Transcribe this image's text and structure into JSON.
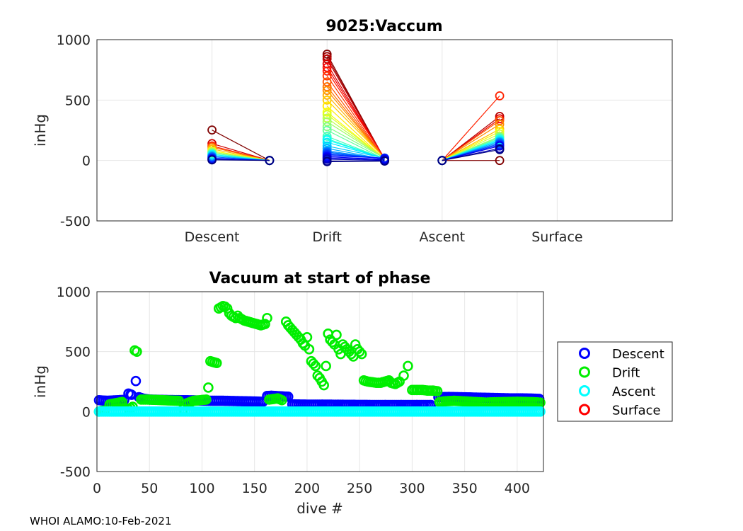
{
  "footer": "WHOI ALAMO:10-Feb-2021",
  "chart_data": [
    {
      "type": "line",
      "title": "9025:Vaccum",
      "ylabel": "inHg",
      "xlabel": "",
      "categories": [
        "Descent",
        "Drift",
        "Ascent",
        "Surface"
      ],
      "ylim": [
        -500,
        1000
      ],
      "yticks": [
        -500,
        0,
        500,
        1000
      ],
      "grid": true,
      "note_segments": "Each line joins the vacuum at the start of a phase to the vacuum at the end of that phase for one dive; line colour runs from dark red (earliest dives) to dark blue (latest dives).",
      "phases": [
        {
          "phase": "Descent",
          "start_values": [
            252,
            140,
            120,
            110,
            95,
            80,
            70,
            60,
            50,
            40,
            30,
            20,
            10,
            5
          ],
          "end_values": [
            0,
            0,
            0,
            0,
            0,
            0,
            0,
            0,
            0,
            0,
            0,
            0,
            0,
            0
          ]
        },
        {
          "phase": "Drift",
          "start_values": [
            880,
            860,
            840,
            800,
            770,
            740,
            700,
            650,
            610,
            580,
            540,
            500,
            450,
            400,
            380,
            350,
            320,
            280,
            250,
            200,
            180,
            170,
            150,
            120,
            100,
            80,
            70,
            60,
            50,
            40,
            30,
            20,
            10,
            -5,
            -10
          ],
          "end_values": [
            10,
            12,
            14,
            16,
            18,
            20,
            10,
            12,
            14,
            16,
            18,
            20,
            10,
            12,
            14,
            16,
            18,
            20,
            10,
            12,
            14,
            16,
            18,
            20,
            10,
            12,
            14,
            16,
            18,
            20,
            10,
            5,
            0,
            -5,
            -5
          ]
        },
        {
          "phase": "Ascent",
          "start_values": [
            0,
            0,
            0,
            0,
            0,
            0,
            0,
            0,
            0,
            0,
            0,
            0,
            0,
            0,
            0,
            0,
            0,
            0,
            0,
            0
          ],
          "end_values": [
            0,
            365,
            345,
            535,
            330,
            300,
            260,
            240,
            220,
            200,
            190,
            180,
            170,
            160,
            150,
            140,
            130,
            120,
            100,
            90
          ]
        }
      ]
    },
    {
      "type": "scatter",
      "title": "Vacuum at start of phase",
      "xlabel": "dive #",
      "ylabel": "inHg",
      "xlim": [
        0,
        425
      ],
      "xticks": [
        0,
        50,
        100,
        150,
        200,
        250,
        300,
        350,
        400
      ],
      "ylim": [
        -500,
        1000
      ],
      "yticks": [
        -500,
        0,
        500,
        1000
      ],
      "grid": true,
      "legend_position": "outside-right",
      "series": [
        {
          "name": "Descent",
          "color": "#0000ff",
          "points": [
            [
              2,
              95
            ],
            [
              6,
              92
            ],
            [
              10,
              90
            ],
            [
              14,
              92
            ],
            [
              18,
              94
            ],
            [
              22,
              96
            ],
            [
              26,
              98
            ],
            [
              30,
              150
            ],
            [
              33,
              140
            ],
            [
              37,
              255
            ],
            [
              40,
              120
            ],
            [
              44,
              108
            ],
            [
              50,
              100
            ],
            [
              60,
              98
            ],
            [
              70,
              96
            ],
            [
              80,
              95
            ],
            [
              90,
              94
            ],
            [
              100,
              92
            ],
            [
              110,
              90
            ],
            [
              120,
              90
            ],
            [
              130,
              88
            ],
            [
              140,
              86
            ],
            [
              150,
              84
            ],
            [
              158,
              82
            ],
            [
              162,
              130
            ],
            [
              166,
              132
            ],
            [
              170,
              130
            ],
            [
              174,
              128
            ],
            [
              178,
              126
            ],
            [
              182,
              124
            ],
            [
              186,
              60
            ],
            [
              200,
              58
            ],
            [
              215,
              58
            ],
            [
              230,
              57
            ],
            [
              245,
              56
            ],
            [
              260,
              55
            ],
            [
              275,
              55
            ],
            [
              290,
              55
            ],
            [
              305,
              55
            ],
            [
              318,
              55
            ],
            [
              325,
              120
            ],
            [
              335,
              122
            ],
            [
              345,
              120
            ],
            [
              355,
              118
            ],
            [
              365,
              116
            ],
            [
              375,
              114
            ],
            [
              385,
              112
            ],
            [
              395,
              110
            ],
            [
              405,
              110
            ],
            [
              415,
              108
            ],
            [
              421,
              106
            ]
          ]
        },
        {
          "name": "Drift",
          "color": "#00ee00",
          "points": [
            [
              2,
              0
            ],
            [
              4,
              5
            ],
            [
              8,
              10
            ],
            [
              12,
              60
            ],
            [
              18,
              70
            ],
            [
              24,
              80
            ],
            [
              30,
              20
            ],
            [
              34,
              40
            ],
            [
              36,
              510
            ],
            [
              38,
              500
            ],
            [
              42,
              100
            ],
            [
              48,
              100
            ],
            [
              54,
              98
            ],
            [
              60,
              96
            ],
            [
              66,
              94
            ],
            [
              72,
              92
            ],
            [
              78,
              90
            ],
            [
              82,
              20
            ],
            [
              86,
              70
            ],
            [
              92,
              90
            ],
            [
              98,
              95
            ],
            [
              104,
              100
            ],
            [
              106,
              200
            ],
            [
              108,
              420
            ],
            [
              110,
              415
            ],
            [
              112,
              410
            ],
            [
              114,
              405
            ],
            [
              116,
              860
            ],
            [
              118,
              870
            ],
            [
              120,
              880
            ],
            [
              122,
              875
            ],
            [
              124,
              860
            ],
            [
              126,
              820
            ],
            [
              128,
              800
            ],
            [
              130,
              790
            ],
            [
              132,
              780
            ],
            [
              134,
              800
            ],
            [
              136,
              780
            ],
            [
              140,
              760
            ],
            [
              144,
              750
            ],
            [
              148,
              740
            ],
            [
              152,
              730
            ],
            [
              156,
              720
            ],
            [
              160,
              730
            ],
            [
              162,
              780
            ],
            [
              164,
              100
            ],
            [
              168,
              105
            ],
            [
              172,
              110
            ],
            [
              176,
              95
            ],
            [
              180,
              750
            ],
            [
              182,
              720
            ],
            [
              184,
              700
            ],
            [
              186,
              680
            ],
            [
              188,
              660
            ],
            [
              190,
              640
            ],
            [
              192,
              620
            ],
            [
              194,
              600
            ],
            [
              196,
              570
            ],
            [
              198,
              550
            ],
            [
              200,
              620
            ],
            [
              202,
              520
            ],
            [
              204,
              420
            ],
            [
              206,
              400
            ],
            [
              208,
              380
            ],
            [
              210,
              300
            ],
            [
              212,
              280
            ],
            [
              214,
              250
            ],
            [
              216,
              220
            ],
            [
              218,
              380
            ],
            [
              220,
              650
            ],
            [
              222,
              600
            ],
            [
              224,
              580
            ],
            [
              226,
              560
            ],
            [
              228,
              640
            ],
            [
              230,
              520
            ],
            [
              232,
              480
            ],
            [
              234,
              560
            ],
            [
              236,
              540
            ],
            [
              238,
              520
            ],
            [
              240,
              500
            ],
            [
              242,
              480
            ],
            [
              244,
              460
            ],
            [
              246,
              560
            ],
            [
              248,
              520
            ],
            [
              250,
              500
            ],
            [
              252,
              480
            ],
            [
              254,
              260
            ],
            [
              258,
              250
            ],
            [
              262,
              245
            ],
            [
              266,
              240
            ],
            [
              270,
              240
            ],
            [
              274,
              250
            ],
            [
              278,
              260
            ],
            [
              280,
              240
            ],
            [
              284,
              230
            ],
            [
              288,
              250
            ],
            [
              292,
              300
            ],
            [
              296,
              380
            ],
            [
              300,
              180
            ],
            [
              305,
              180
            ],
            [
              310,
              180
            ],
            [
              315,
              175
            ],
            [
              320,
              175
            ],
            [
              324,
              170
            ],
            [
              326,
              80
            ],
            [
              330,
              85
            ],
            [
              340,
              90
            ],
            [
              350,
              85
            ],
            [
              360,
              80
            ],
            [
              370,
              75
            ],
            [
              380,
              78
            ],
            [
              390,
              80
            ],
            [
              400,
              82
            ],
            [
              410,
              80
            ],
            [
              418,
              78
            ],
            [
              422,
              75
            ]
          ]
        },
        {
          "name": "Ascent",
          "color": "#00ffff",
          "points": [
            [
              2,
              0
            ],
            [
              20,
              0
            ],
            [
              40,
              0
            ],
            [
              60,
              0
            ],
            [
              80,
              0
            ],
            [
              100,
              0
            ],
            [
              120,
              0
            ],
            [
              140,
              0
            ],
            [
              160,
              0
            ],
            [
              180,
              0
            ],
            [
              200,
              0
            ],
            [
              220,
              0
            ],
            [
              240,
              0
            ],
            [
              260,
              0
            ],
            [
              280,
              0
            ],
            [
              300,
              0
            ],
            [
              320,
              0
            ],
            [
              340,
              0
            ],
            [
              360,
              0
            ],
            [
              380,
              0
            ],
            [
              400,
              0
            ],
            [
              422,
              0
            ]
          ]
        },
        {
          "name": "Surface",
          "color": "#ff0000",
          "points": []
        }
      ]
    }
  ]
}
